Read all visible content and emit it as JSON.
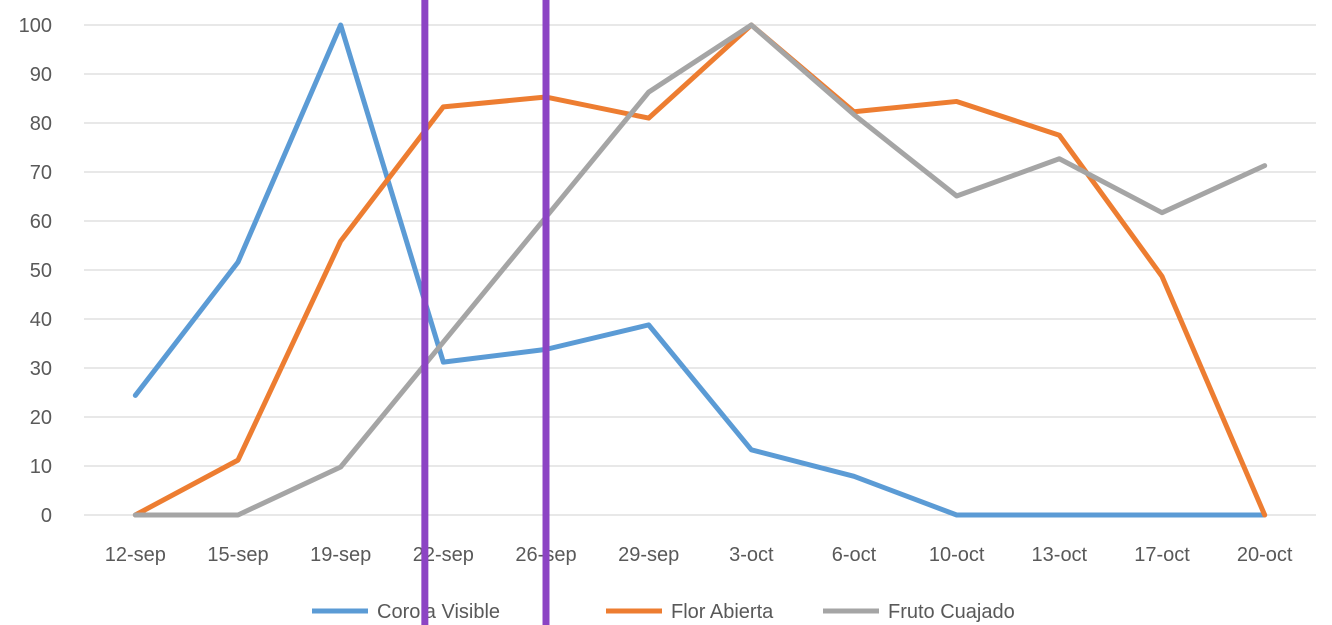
{
  "chart_data": {
    "type": "line",
    "categories": [
      "12-sep",
      "15-sep",
      "19-sep",
      "22-sep",
      "26-sep",
      "29-sep",
      "3-oct",
      "6-oct",
      "10-oct",
      "13-oct",
      "17-oct",
      "20-oct"
    ],
    "series": [
      {
        "name": "Corola Visible",
        "color": "#5b9bd5",
        "values": [
          24.4,
          51.6,
          100,
          31.2,
          33.8,
          38.8,
          13.3,
          7.9,
          0,
          0,
          0,
          0
        ]
      },
      {
        "name": "Flor Abierta",
        "color": "#ed7d31",
        "values": [
          0,
          11.2,
          55.9,
          83.3,
          85.3,
          81.0,
          100,
          82.3,
          84.4,
          77.5,
          48.7,
          0
        ]
      },
      {
        "name": "Fruto Cuajado",
        "color": "#a5a5a5",
        "values": [
          0,
          0,
          9.8,
          null,
          null,
          86.3,
          100,
          81.7,
          65.1,
          72.7,
          61.7,
          71.3
        ]
      }
    ],
    "ylim": [
      0,
      100
    ],
    "yticks": [
      0,
      10,
      20,
      30,
      40,
      50,
      60,
      70,
      80,
      90,
      100
    ],
    "grid": true,
    "legend_position": "bottom",
    "markers": [
      {
        "type": "vertical-line",
        "x": "between 19-sep and 22-sep",
        "color": "#8c44c4"
      },
      {
        "type": "vertical-line",
        "x": "26-sep",
        "color": "#8c44c4"
      }
    ]
  }
}
